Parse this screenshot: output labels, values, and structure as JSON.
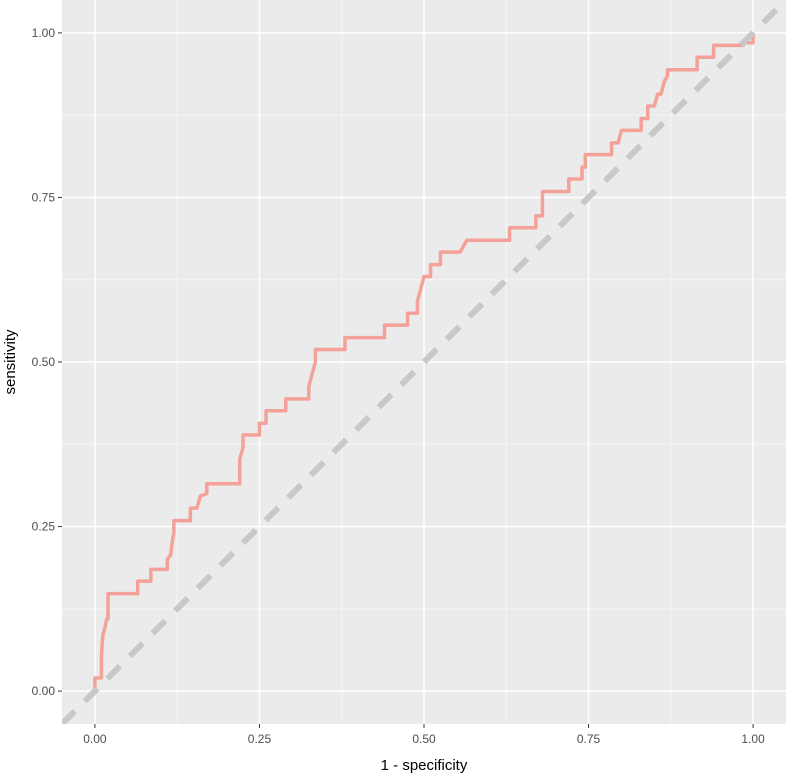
{
  "chart_data": {
    "type": "line",
    "title": "",
    "xlabel": "1 - specificity",
    "ylabel": "sensitivity",
    "xlim": [
      -0.05,
      1.05
    ],
    "ylim": [
      -0.05,
      1.05
    ],
    "x_ticks": [
      0.0,
      0.25,
      0.5,
      0.75,
      1.0
    ],
    "x_tick_labels": [
      "0.00",
      "0.25",
      "0.50",
      "0.75",
      "1.00"
    ],
    "y_ticks": [
      0.0,
      0.25,
      0.5,
      0.75,
      1.0
    ],
    "y_tick_labels": [
      "0.00",
      "0.25",
      "0.50",
      "0.75",
      "1.00"
    ],
    "grid": true,
    "background": "#ebebeb",
    "grid_major_color": "#ffffff",
    "grid_minor_color": "#f5f5f5",
    "series": [
      {
        "style": "solid",
        "color": "#f4a199",
        "x": [
          0.0,
          0.0,
          0.01,
          0.01,
          0.012,
          0.015,
          0.018,
          0.02,
          0.02,
          0.065,
          0.065,
          0.085,
          0.085,
          0.11,
          0.11,
          0.115,
          0.118,
          0.12,
          0.12,
          0.145,
          0.145,
          0.155,
          0.16,
          0.17,
          0.17,
          0.22,
          0.22,
          0.225,
          0.225,
          0.25,
          0.25,
          0.26,
          0.26,
          0.29,
          0.29,
          0.325,
          0.325,
          0.33,
          0.335,
          0.335,
          0.38,
          0.38,
          0.44,
          0.44,
          0.475,
          0.475,
          0.49,
          0.49,
          0.495,
          0.5,
          0.51,
          0.51,
          0.525,
          0.525,
          0.555,
          0.565,
          0.575,
          0.575,
          0.63,
          0.63,
          0.67,
          0.67,
          0.68,
          0.68,
          0.72,
          0.72,
          0.74,
          0.74,
          0.745,
          0.745,
          0.785,
          0.785,
          0.795,
          0.8,
          0.8,
          0.83,
          0.83,
          0.84,
          0.84,
          0.85,
          0.855,
          0.86,
          0.865,
          0.87,
          0.87,
          0.915,
          0.915,
          0.94,
          0.94,
          0.985,
          0.985,
          0.995,
          0.995,
          1.0,
          1.0
        ],
        "y": [
          0.0,
          0.02,
          0.02,
          0.055,
          0.085,
          0.095,
          0.11,
          0.11,
          0.148,
          0.148,
          0.167,
          0.167,
          0.185,
          0.185,
          0.2,
          0.207,
          0.23,
          0.24,
          0.259,
          0.259,
          0.278,
          0.278,
          0.296,
          0.3,
          0.315,
          0.315,
          0.352,
          0.37,
          0.389,
          0.389,
          0.407,
          0.407,
          0.426,
          0.426,
          0.444,
          0.444,
          0.463,
          0.482,
          0.5,
          0.519,
          0.519,
          0.537,
          0.537,
          0.556,
          0.556,
          0.574,
          0.574,
          0.592,
          0.611,
          0.63,
          0.63,
          0.648,
          0.648,
          0.667,
          0.667,
          0.685,
          0.685,
          0.685,
          0.685,
          0.704,
          0.704,
          0.722,
          0.722,
          0.759,
          0.759,
          0.778,
          0.778,
          0.796,
          0.796,
          0.815,
          0.815,
          0.833,
          0.833,
          0.852,
          0.852,
          0.852,
          0.87,
          0.87,
          0.889,
          0.889,
          0.907,
          0.907,
          0.926,
          0.935,
          0.944,
          0.944,
          0.963,
          0.963,
          0.981,
          0.981,
          0.985,
          0.985,
          0.985,
          0.985,
          1.0
        ]
      },
      {
        "style": "dashed",
        "color": "#c8c8c8",
        "x": [
          -0.05,
          1.05
        ],
        "y": [
          -0.05,
          1.05
        ]
      }
    ]
  }
}
